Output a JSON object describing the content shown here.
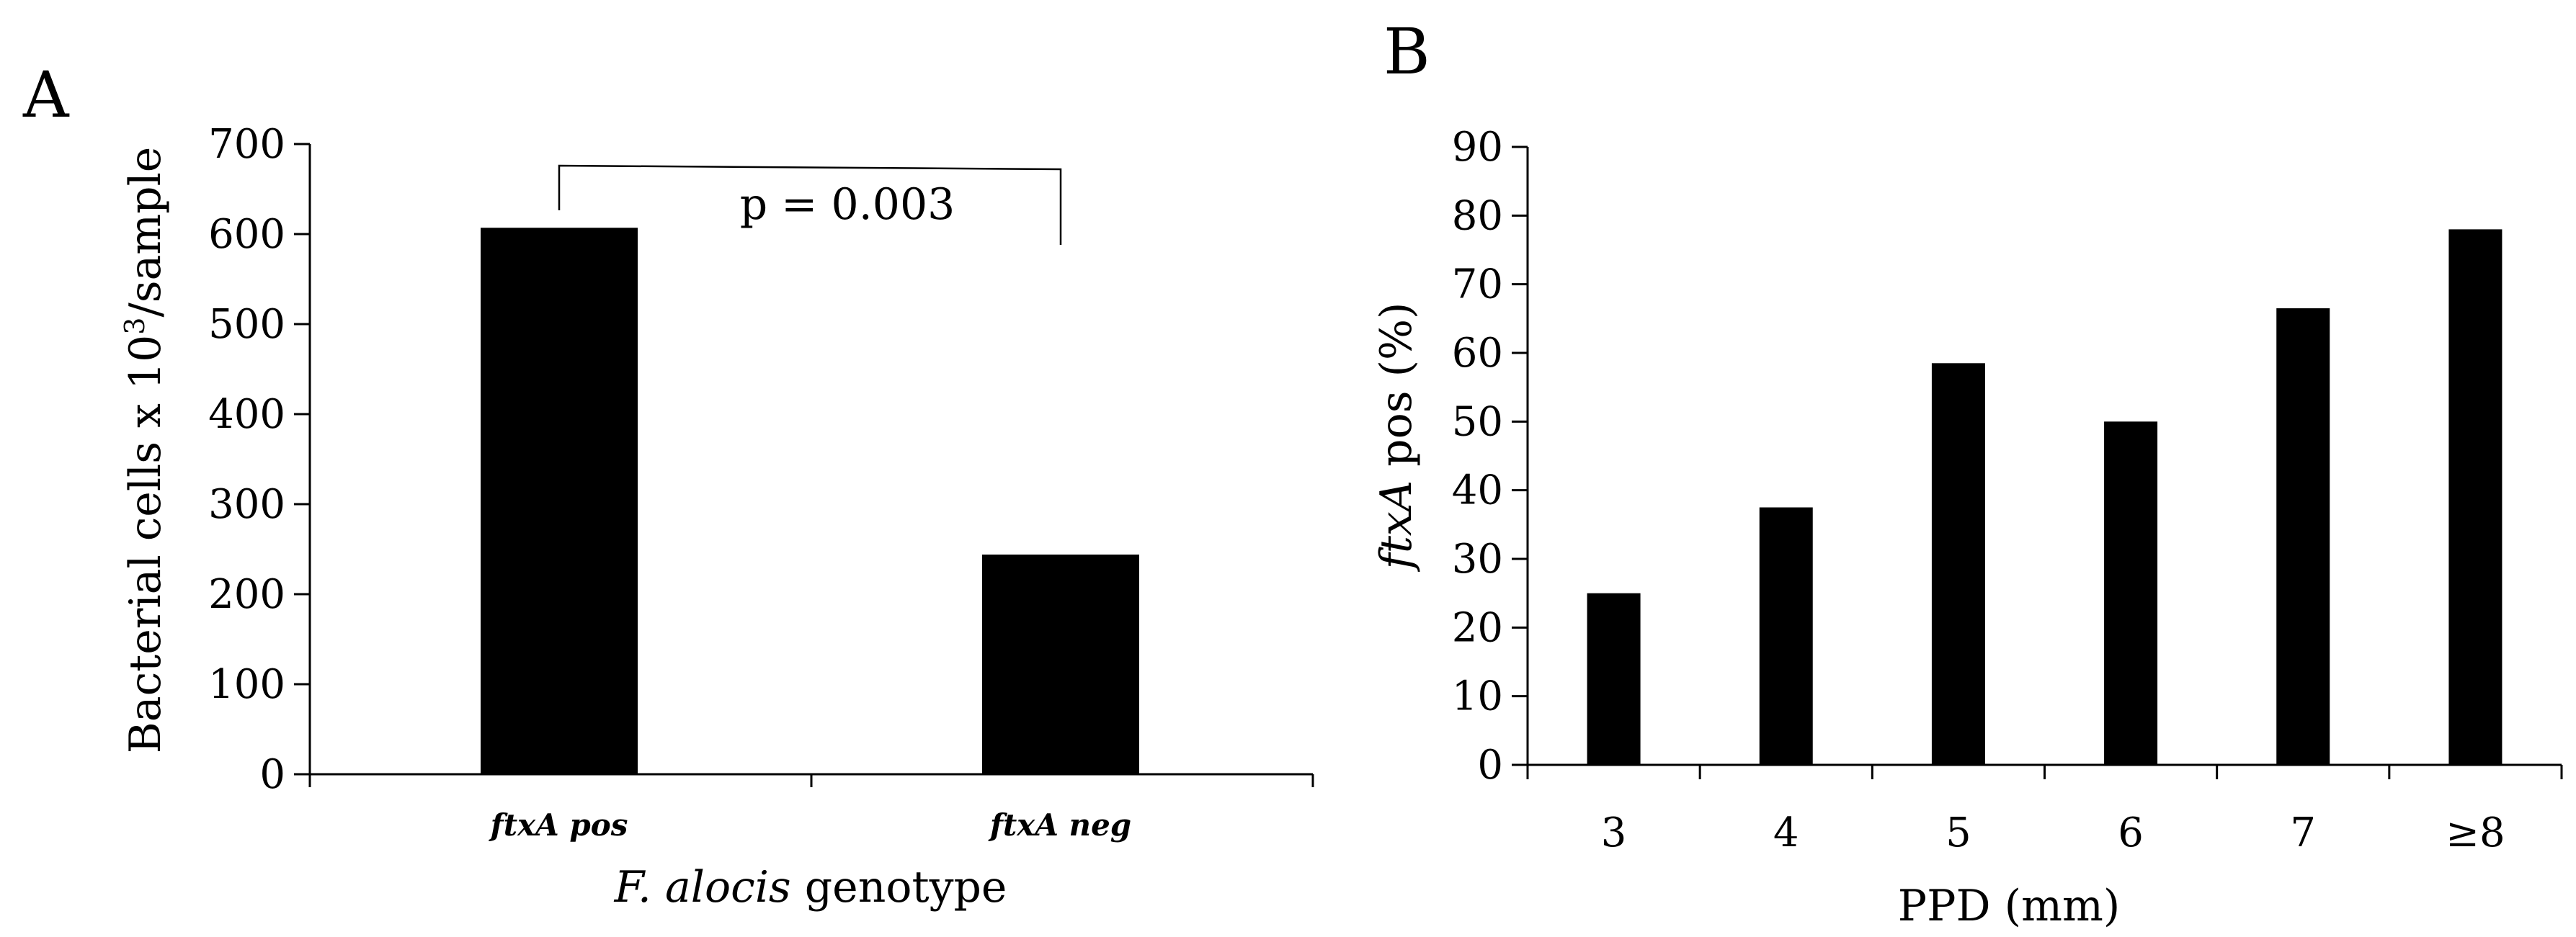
{
  "chart_data": [
    {
      "panel": "A",
      "type": "bar",
      "categories": [
        {
          "italic_bold": "ftxA pos",
          "label": "ftxA pos"
        },
        {
          "italic_bold": "ftxA neg",
          "label": "ftxA neg"
        }
      ],
      "values": [
        607,
        244
      ],
      "ylim": [
        0,
        700
      ],
      "yticks": [
        0,
        100,
        200,
        300,
        400,
        500,
        600,
        700
      ],
      "ylabel_pre": "Bacterial cells x 10",
      "ylabel_sup": "3",
      "ylabel_post": "/sample",
      "xlabel_italic": "F. alocis",
      "xlabel_rest": " genotype",
      "annotation": "p = 0.003",
      "bar_color": "#000000"
    },
    {
      "panel": "B",
      "type": "bar",
      "categories": [
        "3",
        "4",
        "5",
        "6",
        "7",
        "≥8"
      ],
      "values": [
        25,
        37.5,
        58.5,
        50,
        66.5,
        78
      ],
      "ylim": [
        0,
        90
      ],
      "yticks": [
        0,
        10,
        20,
        30,
        40,
        50,
        60,
        70,
        80,
        90
      ],
      "ylabel_italic": "ftxA",
      "ylabel_rest": " pos (%)",
      "xlabel": "PPD (mm)",
      "bar_color": "#000000"
    }
  ]
}
